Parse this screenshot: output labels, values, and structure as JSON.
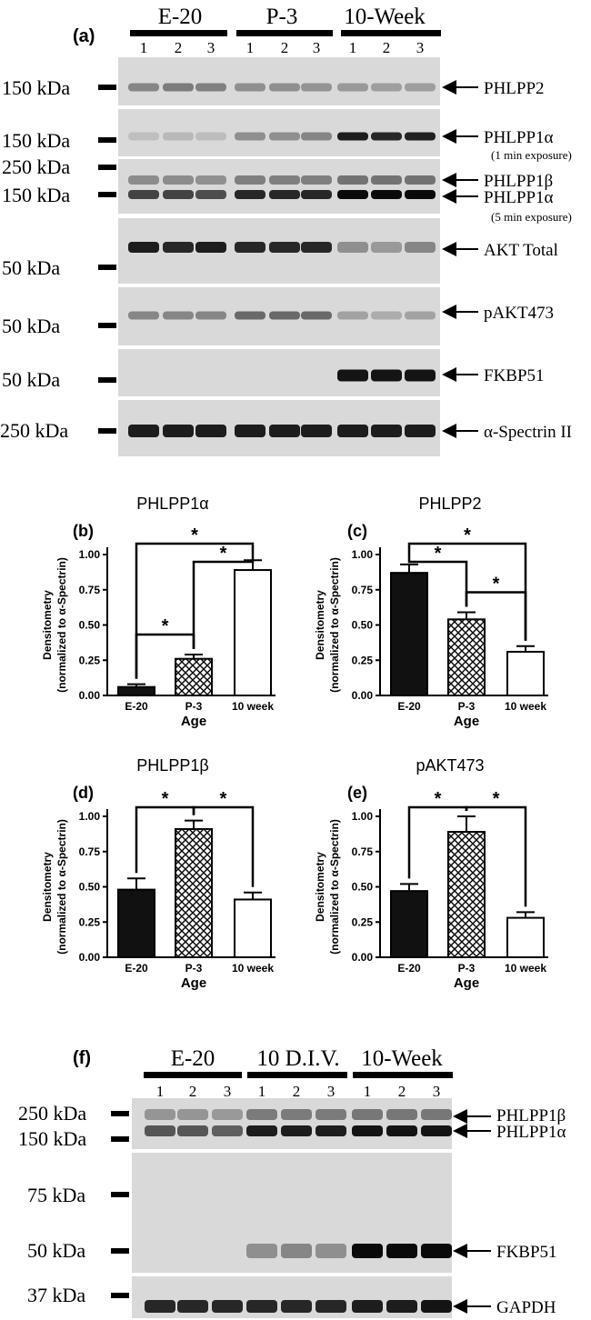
{
  "panel_a": {
    "label": "(a)",
    "groups": [
      "E-20",
      "P-3",
      "10-Week"
    ],
    "lanes": [
      "1",
      "2",
      "3"
    ],
    "blots": [
      {
        "left_labels": [
          "150 kDa"
        ],
        "right_labels": [
          "PHLPP2"
        ],
        "sub": "",
        "intensity": [
          0.35,
          0.4,
          0.38,
          0.3,
          0.3,
          0.28,
          0.25,
          0.22,
          0.22
        ]
      },
      {
        "left_labels": [
          "150 kDa"
        ],
        "right_labels": [
          "PHLPP1α"
        ],
        "sub": "(1 min exposure)",
        "intensity": [
          0.05,
          0.08,
          0.06,
          0.3,
          0.3,
          0.35,
          0.9,
          0.85,
          0.88
        ]
      },
      {
        "left_labels": [
          "250 kDa",
          "150 kDa"
        ],
        "right_labels": [
          "PHLPP1β",
          "PHLPP1α"
        ],
        "sub": "(5 min exposure)",
        "intensity": [
          0.7,
          0.7,
          0.65,
          0.85,
          0.85,
          0.85,
          1,
          1,
          1
        ]
      },
      {
        "left_labels": [
          "50 kDa"
        ],
        "right_labels": [
          "AKT Total"
        ],
        "sub": "",
        "intensity": [
          0.9,
          0.85,
          0.9,
          0.85,
          0.85,
          0.85,
          0.3,
          0.25,
          0.35
        ]
      },
      {
        "left_labels": [
          "50 kDa"
        ],
        "right_labels": [
          "pAKT473"
        ],
        "sub": "",
        "intensity": [
          0.35,
          0.35,
          0.35,
          0.5,
          0.5,
          0.5,
          0.2,
          0.15,
          0.2
        ]
      },
      {
        "left_labels": [
          "50 kDa"
        ],
        "right_labels": [
          "FKBP51"
        ],
        "sub": "",
        "intensity": [
          0,
          0,
          0,
          0,
          0,
          0,
          0.95,
          0.95,
          0.95
        ]
      },
      {
        "left_labels": [
          "250 kDa"
        ],
        "right_labels": [
          "α-Spectrin II"
        ],
        "sub": "",
        "intensity": [
          0.9,
          0.9,
          0.9,
          0.9,
          0.9,
          0.9,
          0.9,
          0.9,
          0.9
        ]
      }
    ]
  },
  "chart_data": [
    {
      "type": "bar",
      "panel": "(b)",
      "title": "PHLPP1α",
      "categories": [
        "E-20",
        "P-3",
        "10 week"
      ],
      "values": [
        0.06,
        0.26,
        0.89
      ],
      "errors": [
        0.02,
        0.03,
        0.07
      ],
      "fills": [
        "solid",
        "hatched",
        "open"
      ],
      "xlabel": "Age",
      "ylabel": [
        "Densitometry",
        "(normalized to α-Spectrin)"
      ],
      "ylim": [
        0,
        1.0
      ],
      "yticks": [
        "0.00",
        "0.25",
        "0.50",
        "0.75",
        "1.00"
      ],
      "significance": [
        {
          "from": 0,
          "to": 1,
          "label": "*"
        },
        {
          "from": 1,
          "to": 2,
          "label": "*"
        },
        {
          "from": 0,
          "to": 2,
          "label": "*"
        }
      ]
    },
    {
      "type": "bar",
      "panel": "(c)",
      "title": "PHLPP2",
      "categories": [
        "E-20",
        "P-3",
        "10 week"
      ],
      "values": [
        0.87,
        0.54,
        0.31
      ],
      "errors": [
        0.06,
        0.05,
        0.04
      ],
      "fills": [
        "solid",
        "hatched",
        "open"
      ],
      "xlabel": "Age",
      "ylabel": [
        "Densitometry",
        "(normalized to α-Spectrin)"
      ],
      "ylim": [
        0,
        1.0
      ],
      "yticks": [
        "0.00",
        "0.25",
        "0.50",
        "0.75",
        "1.00"
      ],
      "significance": [
        {
          "from": 0,
          "to": 1,
          "label": "*"
        },
        {
          "from": 1,
          "to": 2,
          "label": "*"
        },
        {
          "from": 0,
          "to": 2,
          "label": "*"
        }
      ]
    },
    {
      "type": "bar",
      "panel": "(d)",
      "title": "PHLPP1β",
      "categories": [
        "E-20",
        "P-3",
        "10 week"
      ],
      "values": [
        0.48,
        0.91,
        0.41
      ],
      "errors": [
        0.08,
        0.06,
        0.05
      ],
      "fills": [
        "solid",
        "hatched",
        "open"
      ],
      "xlabel": "Age",
      "ylabel": [
        "Densitometry",
        "(normalized to α-Spectrin)"
      ],
      "ylim": [
        0,
        1.0
      ],
      "yticks": [
        "0.00",
        "0.25",
        "0.50",
        "0.75",
        "1.00"
      ],
      "significance": [
        {
          "from": 0,
          "to": 1,
          "label": "*"
        },
        {
          "from": 1,
          "to": 2,
          "label": "*"
        }
      ]
    },
    {
      "type": "bar",
      "panel": "(e)",
      "title": "pAKT473",
      "categories": [
        "E-20",
        "P-3",
        "10 week"
      ],
      "values": [
        0.47,
        0.89,
        0.28
      ],
      "errors": [
        0.05,
        0.11,
        0.04
      ],
      "fills": [
        "solid",
        "hatched",
        "open"
      ],
      "xlabel": "Age",
      "ylabel": [
        "Densitometry",
        "(normalized to α-Spectrin)"
      ],
      "ylim": [
        0,
        1.0
      ],
      "yticks": [
        "0.00",
        "0.25",
        "0.50",
        "0.75",
        "1.00"
      ],
      "significance": [
        {
          "from": 0,
          "to": 1,
          "label": "*"
        },
        {
          "from": 1,
          "to": 2,
          "label": "*"
        }
      ]
    }
  ],
  "panel_f": {
    "label": "(f)",
    "groups": [
      "E-20",
      "10 D.I.V.",
      "10-Week"
    ],
    "lanes": [
      "1",
      "2",
      "3"
    ],
    "blots": [
      {
        "left_labels": [
          "250 kDa",
          "150 kDa"
        ],
        "right_labels": [
          "PHLPP1β",
          "PHLPP1α"
        ],
        "intensity": [
          0.6,
          0.6,
          0.55,
          0.9,
          0.9,
          0.9,
          0.95,
          0.95,
          0.95
        ]
      },
      {
        "left_labels": [
          "75 kDa",
          "50 kDa"
        ],
        "right_labels": [
          "FKBP51"
        ],
        "intensity": [
          0,
          0,
          0,
          0.3,
          0.35,
          0.3,
          1,
          1,
          1
        ]
      },
      {
        "left_labels": [
          "37 kDa"
        ],
        "right_labels": [
          "GAPDH"
        ],
        "intensity": [
          0.85,
          0.85,
          0.85,
          0.85,
          0.85,
          0.85,
          0.9,
          0.9,
          0.95
        ]
      }
    ]
  }
}
